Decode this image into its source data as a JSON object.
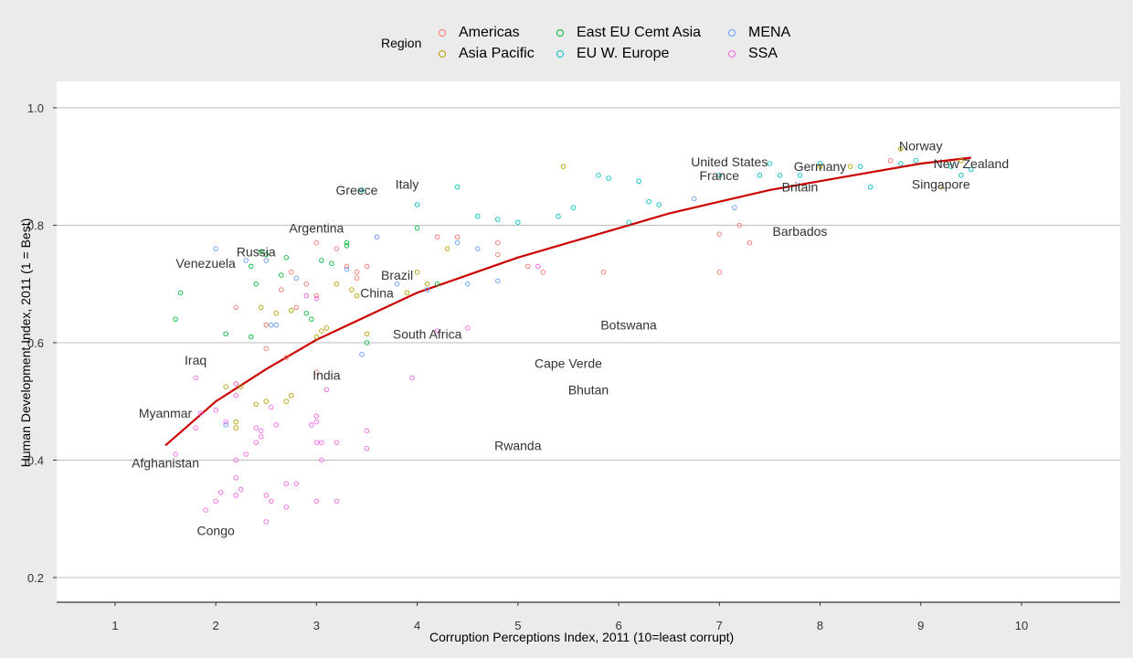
{
  "legend": {
    "title": "Region",
    "items": [
      {
        "label": "Americas",
        "color": "#F8766D"
      },
      {
        "label": "Asia Pacific",
        "color": "#B79F00"
      },
      {
        "label": "East EU Cemt Asia",
        "color": "#00BA38"
      },
      {
        "label": "EU W. Europe",
        "color": "#00BFC4"
      },
      {
        "label": "MENA",
        "color": "#619CFF"
      },
      {
        "label": "SSA",
        "color": "#F564E3"
      }
    ]
  },
  "chart_data": {
    "type": "scatter",
    "xlabel": "Corruption Perceptions Index, 2011 (10=least corrupt)",
    "ylabel": "Human Development Index, 2011 (1 = Best)",
    "xlim": [
      0.42,
      10.98
    ],
    "ylim": [
      0.158,
      1.045
    ],
    "xticks": [
      1,
      2,
      3,
      4,
      5,
      6,
      7,
      8,
      9,
      10
    ],
    "yticks": [
      0.2,
      0.4,
      0.6,
      0.8,
      1.0
    ],
    "ytick_labels": [
      "0.2",
      "0.4",
      "0.6",
      "0.8",
      "1.0"
    ],
    "grid": "horizontal major lines",
    "legend_position": "top",
    "trend_color": "#CC0000",
    "trend": [
      [
        1.5,
        0.425
      ],
      [
        2.0,
        0.5
      ],
      [
        2.5,
        0.555
      ],
      [
        3.0,
        0.605
      ],
      [
        3.5,
        0.645
      ],
      [
        4.0,
        0.685
      ],
      [
        4.5,
        0.715
      ],
      [
        5.0,
        0.745
      ],
      [
        5.5,
        0.77
      ],
      [
        6.0,
        0.795
      ],
      [
        6.5,
        0.82
      ],
      [
        7.0,
        0.84
      ],
      [
        7.5,
        0.86
      ],
      [
        8.0,
        0.875
      ],
      [
        8.5,
        0.89
      ],
      [
        9.0,
        0.905
      ],
      [
        9.5,
        0.915
      ]
    ],
    "series": [
      {
        "name": "Americas",
        "points": [
          [
            3.0,
            0.77
          ],
          [
            2.75,
            0.72
          ],
          [
            2.8,
            0.66
          ],
          [
            3.3,
            0.73
          ],
          [
            3.4,
            0.72
          ],
          [
            2.2,
            0.66
          ],
          [
            2.5,
            0.63
          ],
          [
            3.2,
            0.76
          ],
          [
            3.4,
            0.71
          ],
          [
            2.5,
            0.59
          ],
          [
            3.0,
            0.68
          ],
          [
            2.65,
            0.69
          ],
          [
            4.2,
            0.78
          ],
          [
            4.8,
            0.75
          ],
          [
            4.8,
            0.77
          ],
          [
            5.25,
            0.72
          ],
          [
            5.85,
            0.72
          ],
          [
            7.0,
            0.785
          ],
          [
            7.0,
            0.72
          ],
          [
            7.2,
            0.8
          ],
          [
            7.3,
            0.77
          ],
          [
            2.7,
            0.575
          ],
          [
            2.2,
            0.53
          ],
          [
            2.9,
            0.7
          ],
          [
            3.5,
            0.73
          ],
          [
            5.1,
            0.73
          ],
          [
            8.7,
            0.91
          ],
          [
            4.4,
            0.78
          ],
          [
            3.0,
            0.55
          ]
        ]
      },
      {
        "name": "Asia Pacific",
        "points": [
          [
            2.4,
            0.495
          ],
          [
            2.7,
            0.5
          ],
          [
            2.75,
            0.51
          ],
          [
            2.2,
            0.465
          ],
          [
            2.2,
            0.455
          ],
          [
            2.1,
            0.525
          ],
          [
            2.5,
            0.5
          ],
          [
            2.45,
            0.66
          ],
          [
            2.6,
            0.65
          ],
          [
            2.75,
            0.655
          ],
          [
            3.1,
            0.625
          ],
          [
            3.05,
            0.62
          ],
          [
            3.5,
            0.615
          ],
          [
            3.2,
            0.7
          ],
          [
            3.35,
            0.69
          ],
          [
            3.4,
            0.68
          ],
          [
            3.9,
            0.685
          ],
          [
            4.1,
            0.7
          ],
          [
            4.3,
            0.76
          ],
          [
            5.45,
            0.9
          ],
          [
            8.8,
            0.93
          ],
          [
            9.2,
            0.865
          ],
          [
            9.4,
            0.91
          ],
          [
            8.3,
            0.9
          ],
          [
            2.25,
            0.525
          ],
          [
            4.0,
            0.72
          ],
          [
            8.0,
            0.9
          ],
          [
            3.0,
            0.61
          ]
        ]
      },
      {
        "name": "East EU Cemt Asia",
        "points": [
          [
            1.6,
            0.64
          ],
          [
            1.65,
            0.685
          ],
          [
            2.1,
            0.615
          ],
          [
            2.35,
            0.61
          ],
          [
            2.35,
            0.73
          ],
          [
            2.4,
            0.7
          ],
          [
            2.45,
            0.755
          ],
          [
            2.5,
            0.75
          ],
          [
            2.65,
            0.715
          ],
          [
            2.7,
            0.745
          ],
          [
            2.9,
            0.65
          ],
          [
            3.05,
            0.74
          ],
          [
            3.15,
            0.735
          ],
          [
            3.3,
            0.77
          ],
          [
            3.3,
            0.765
          ],
          [
            4.0,
            0.795
          ],
          [
            4.2,
            0.7
          ],
          [
            2.95,
            0.64
          ],
          [
            3.5,
            0.6
          ]
        ]
      },
      {
        "name": "EU W. Europe",
        "points": [
          [
            4.0,
            0.835
          ],
          [
            4.4,
            0.865
          ],
          [
            4.6,
            0.815
          ],
          [
            4.8,
            0.81
          ],
          [
            5.0,
            0.805
          ],
          [
            5.4,
            0.815
          ],
          [
            5.55,
            0.83
          ],
          [
            5.8,
            0.885
          ],
          [
            5.9,
            0.88
          ],
          [
            6.1,
            0.805
          ],
          [
            6.2,
            0.875
          ],
          [
            6.3,
            0.84
          ],
          [
            6.4,
            0.835
          ],
          [
            7.0,
            0.885
          ],
          [
            7.4,
            0.885
          ],
          [
            7.5,
            0.905
          ],
          [
            7.6,
            0.885
          ],
          [
            8.0,
            0.905
          ],
          [
            8.4,
            0.9
          ],
          [
            8.5,
            0.865
          ],
          [
            8.8,
            0.905
          ],
          [
            8.95,
            0.91
          ],
          [
            9.3,
            0.9
          ],
          [
            9.4,
            0.885
          ],
          [
            9.5,
            0.895
          ],
          [
            7.8,
            0.885
          ],
          [
            3.45,
            0.86
          ]
        ]
      },
      {
        "name": "MENA",
        "points": [
          [
            2.0,
            0.76
          ],
          [
            2.1,
            0.46
          ],
          [
            2.55,
            0.63
          ],
          [
            2.6,
            0.63
          ],
          [
            2.8,
            0.71
          ],
          [
            3.3,
            0.725
          ],
          [
            3.45,
            0.58
          ],
          [
            3.6,
            0.78
          ],
          [
            3.8,
            0.7
          ],
          [
            4.1,
            0.69
          ],
          [
            4.4,
            0.77
          ],
          [
            4.5,
            0.7
          ],
          [
            4.6,
            0.76
          ],
          [
            4.8,
            0.705
          ],
          [
            6.75,
            0.845
          ],
          [
            7.15,
            0.83
          ],
          [
            2.5,
            0.74
          ],
          [
            2.3,
            0.74
          ]
        ]
      },
      {
        "name": "SSA",
        "points": [
          [
            1.8,
            0.455
          ],
          [
            1.85,
            0.48
          ],
          [
            2.0,
            0.485
          ],
          [
            2.1,
            0.465
          ],
          [
            2.2,
            0.53
          ],
          [
            2.2,
            0.51
          ],
          [
            2.25,
            0.35
          ],
          [
            2.2,
            0.34
          ],
          [
            2.2,
            0.37
          ],
          [
            2.2,
            0.4
          ],
          [
            2.0,
            0.33
          ],
          [
            1.9,
            0.315
          ],
          [
            2.05,
            0.345
          ],
          [
            2.3,
            0.41
          ],
          [
            2.4,
            0.455
          ],
          [
            2.45,
            0.45
          ],
          [
            2.4,
            0.43
          ],
          [
            2.45,
            0.44
          ],
          [
            2.5,
            0.34
          ],
          [
            2.55,
            0.33
          ],
          [
            2.5,
            0.295
          ],
          [
            2.6,
            0.46
          ],
          [
            2.55,
            0.49
          ],
          [
            2.7,
            0.32
          ],
          [
            2.7,
            0.36
          ],
          [
            2.8,
            0.36
          ],
          [
            2.95,
            0.46
          ],
          [
            3.0,
            0.465
          ],
          [
            3.0,
            0.475
          ],
          [
            3.0,
            0.43
          ],
          [
            3.05,
            0.43
          ],
          [
            3.05,
            0.4
          ],
          [
            3.1,
            0.52
          ],
          [
            3.0,
            0.33
          ],
          [
            3.2,
            0.33
          ],
          [
            3.2,
            0.43
          ],
          [
            3.5,
            0.45
          ],
          [
            3.5,
            0.42
          ],
          [
            3.95,
            0.54
          ],
          [
            4.2,
            0.62
          ],
          [
            4.5,
            0.625
          ],
          [
            5.2,
            0.73
          ],
          [
            3.0,
            0.675
          ],
          [
            2.9,
            0.68
          ],
          [
            1.6,
            0.41
          ],
          [
            1.8,
            0.54
          ]
        ]
      }
    ],
    "annotations": [
      {
        "text": "Norway",
        "x": 9.0,
        "y": 0.935
      },
      {
        "text": "New Zealand",
        "x": 9.5,
        "y": 0.905
      },
      {
        "text": "Singapore",
        "x": 9.2,
        "y": 0.87
      },
      {
        "text": "United States",
        "x": 7.1,
        "y": 0.908
      },
      {
        "text": "France",
        "x": 7.0,
        "y": 0.885
      },
      {
        "text": "Germany",
        "x": 8.0,
        "y": 0.9
      },
      {
        "text": "Britain",
        "x": 7.8,
        "y": 0.865
      },
      {
        "text": "Barbados",
        "x": 7.8,
        "y": 0.79
      },
      {
        "text": "Italy",
        "x": 3.9,
        "y": 0.87
      },
      {
        "text": "Greece",
        "x": 3.4,
        "y": 0.86
      },
      {
        "text": "Argentina",
        "x": 3.0,
        "y": 0.795
      },
      {
        "text": "Russia",
        "x": 2.4,
        "y": 0.755
      },
      {
        "text": "Venezuela",
        "x": 1.9,
        "y": 0.735
      },
      {
        "text": "Brazil",
        "x": 3.8,
        "y": 0.715
      },
      {
        "text": "China",
        "x": 3.6,
        "y": 0.685
      },
      {
        "text": "South Africa",
        "x": 4.1,
        "y": 0.615
      },
      {
        "text": "Botswana",
        "x": 6.1,
        "y": 0.63
      },
      {
        "text": "Iraq",
        "x": 1.8,
        "y": 0.57
      },
      {
        "text": "India",
        "x": 3.1,
        "y": 0.545
      },
      {
        "text": "Cape Verde",
        "x": 5.5,
        "y": 0.565
      },
      {
        "text": "Bhutan",
        "x": 5.7,
        "y": 0.52
      },
      {
        "text": "Myanmar",
        "x": 1.5,
        "y": 0.48
      },
      {
        "text": "Rwanda",
        "x": 5.0,
        "y": 0.425
      },
      {
        "text": "Afghanistan",
        "x": 1.5,
        "y": 0.395
      },
      {
        "text": "Congo",
        "x": 2.0,
        "y": 0.28
      }
    ]
  }
}
